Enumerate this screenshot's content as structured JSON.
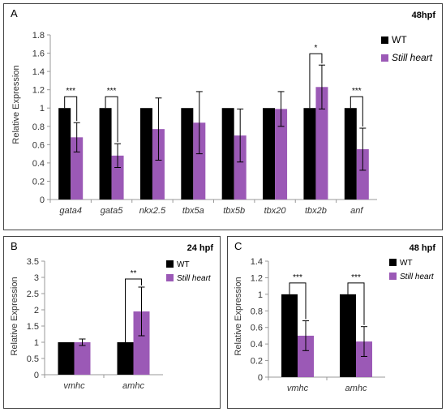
{
  "colors": {
    "wt": "#000000",
    "still_heart": "#9b59b6",
    "axis": "#999999",
    "text": "#333333"
  },
  "panels": [
    {
      "label": "A",
      "title": "48hpf"
    },
    {
      "label": "B",
      "title": "24 hpf"
    },
    {
      "label": "C",
      "title": "48 hpf"
    }
  ],
  "chart_data": [
    {
      "type": "bar",
      "title": "48hpf",
      "ylabel": "Relative Expression",
      "ylim": [
        0,
        1.8
      ],
      "yticks": [
        "0",
        "0.2",
        "0.4",
        "0.6",
        "0.8",
        "1",
        "1.2",
        "1.4",
        "1.6",
        "1.8"
      ],
      "categories": [
        "gata4",
        "gata5",
        "nkx2.5",
        "tbx5a",
        "tbx5b",
        "tbx20",
        "tbx2b",
        "anf"
      ],
      "series": [
        {
          "name": "WT",
          "values": [
            1,
            1,
            1,
            1,
            1,
            1,
            1,
            1
          ],
          "errors": [
            0,
            0,
            0,
            0,
            0,
            0,
            0,
            0
          ]
        },
        {
          "name": "Still heart",
          "values": [
            0.68,
            0.48,
            0.77,
            0.84,
            0.7,
            0.99,
            1.23,
            0.55
          ],
          "errors": [
            0.16,
            0.13,
            0.34,
            0.34,
            0.29,
            0.19,
            0.24,
            0.23
          ]
        }
      ],
      "significance": [
        {
          "category": "gata4",
          "text": "***"
        },
        {
          "category": "gata5",
          "text": "***"
        },
        {
          "category": "tbx2b",
          "text": "*"
        },
        {
          "category": "anf",
          "text": "***"
        }
      ],
      "legend": "top-right",
      "grid": false
    },
    {
      "type": "bar",
      "title": "24 hpf",
      "ylabel": "Relative Expression",
      "ylim": [
        0,
        3.5
      ],
      "yticks": [
        "0",
        "0.5",
        "1",
        "1.5",
        "2",
        "2.5",
        "3",
        "3.5"
      ],
      "categories": [
        "vmhc",
        "amhc"
      ],
      "series": [
        {
          "name": "WT",
          "values": [
            1,
            1
          ],
          "errors": [
            0,
            0
          ]
        },
        {
          "name": "Still heart",
          "values": [
            1.0,
            1.95
          ],
          "errors": [
            0.1,
            0.75
          ]
        }
      ],
      "significance": [
        {
          "category": "amhc",
          "text": "**"
        }
      ],
      "legend": "top-right",
      "grid": false
    },
    {
      "type": "bar",
      "title": "48 hpf",
      "ylabel": "Relative Expression",
      "ylim": [
        0,
        1.4
      ],
      "yticks": [
        "0",
        "0.2",
        "0.4",
        "0.6",
        "0.8",
        "1",
        "1.2",
        "1.4"
      ],
      "categories": [
        "vmhc",
        "amhc"
      ],
      "series": [
        {
          "name": "WT",
          "values": [
            1,
            1
          ],
          "errors": [
            0,
            0
          ]
        },
        {
          "name": "Still heart",
          "values": [
            0.5,
            0.43
          ],
          "errors": [
            0.18,
            0.18
          ]
        }
      ],
      "significance": [
        {
          "category": "vmhc",
          "text": "***"
        },
        {
          "category": "amhc",
          "text": "***"
        }
      ],
      "legend": "top-right",
      "grid": false
    }
  ]
}
